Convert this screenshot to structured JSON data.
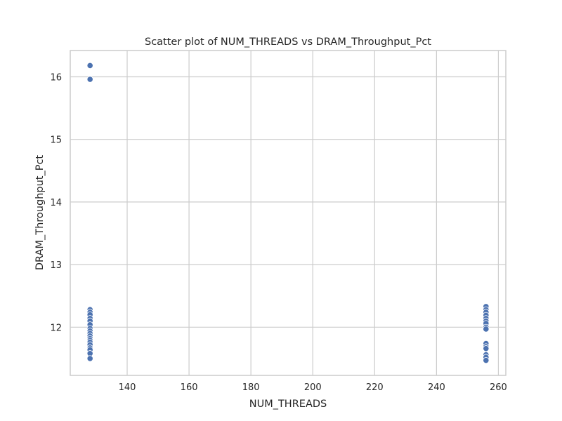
{
  "chart_data": {
    "type": "scatter",
    "title": "Scatter plot of NUM_THREADS vs DRAM_Throughput_Pct",
    "xlabel": "NUM_THREADS",
    "ylabel": "DRAM_Throughput_Pct",
    "xlim": [
      121.6,
      262.4
    ],
    "ylim": [
      11.23,
      16.42
    ],
    "xticks": [
      140,
      160,
      180,
      200,
      220,
      240,
      260
    ],
    "yticks": [
      12,
      13,
      14,
      15,
      16
    ],
    "grid": true,
    "point_color": "#4c72b0",
    "points": [
      {
        "x": 128,
        "y": 16.18
      },
      {
        "x": 128,
        "y": 15.96
      },
      {
        "x": 128,
        "y": 12.28
      },
      {
        "x": 128,
        "y": 12.24
      },
      {
        "x": 128,
        "y": 12.2
      },
      {
        "x": 128,
        "y": 12.14
      },
      {
        "x": 128,
        "y": 12.1
      },
      {
        "x": 128,
        "y": 12.04
      },
      {
        "x": 128,
        "y": 11.98
      },
      {
        "x": 128,
        "y": 11.94
      },
      {
        "x": 128,
        "y": 11.9
      },
      {
        "x": 128,
        "y": 11.86
      },
      {
        "x": 128,
        "y": 11.82
      },
      {
        "x": 128,
        "y": 11.79
      },
      {
        "x": 128,
        "y": 11.76
      },
      {
        "x": 128,
        "y": 11.72
      },
      {
        "x": 128,
        "y": 11.67
      },
      {
        "x": 128,
        "y": 11.64
      },
      {
        "x": 128,
        "y": 11.58
      },
      {
        "x": 128,
        "y": 11.5
      },
      {
        "x": 256,
        "y": 12.33
      },
      {
        "x": 256,
        "y": 12.28
      },
      {
        "x": 256,
        "y": 12.24
      },
      {
        "x": 256,
        "y": 12.19
      },
      {
        "x": 256,
        "y": 12.14
      },
      {
        "x": 256,
        "y": 12.1
      },
      {
        "x": 256,
        "y": 12.06
      },
      {
        "x": 256,
        "y": 12.0
      },
      {
        "x": 256,
        "y": 11.97
      },
      {
        "x": 256,
        "y": 11.74
      },
      {
        "x": 256,
        "y": 11.69
      },
      {
        "x": 256,
        "y": 11.66
      },
      {
        "x": 256,
        "y": 11.56
      },
      {
        "x": 256,
        "y": 11.52
      },
      {
        "x": 256,
        "y": 11.47
      }
    ]
  }
}
